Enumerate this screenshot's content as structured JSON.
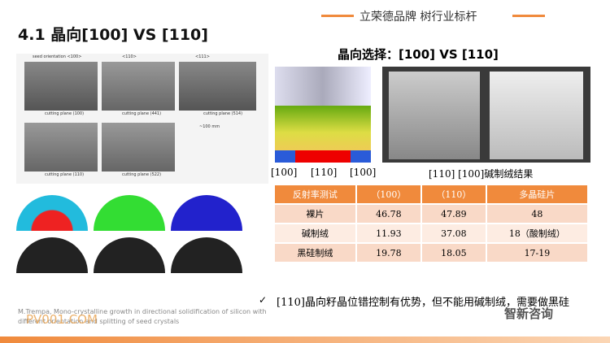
{
  "header": {
    "slogan": "立荣德品牌  树行业标杆",
    "title": "4.1 晶向[100] VS [110]"
  },
  "figure_left": {
    "captions": [
      "seed orientation <100>",
      "<110>",
      "<111>",
      "cutting plane (100)",
      "cutting plane (441)",
      "cutting plane (514)",
      "cutting plane (110)",
      "cutting plane (522)",
      "~100 mm"
    ]
  },
  "right": {
    "heading": "晶向选择：[100] VS [110]",
    "labels": [
      "[100]",
      "[110]",
      "[100]"
    ],
    "result_caption": "[110] [100]碱制绒结果"
  },
  "table": {
    "header": [
      "反射率测试",
      "（100）",
      "（110）",
      "多晶硅片"
    ],
    "rows": [
      [
        "裸片",
        "46.78",
        "47.89",
        "48"
      ],
      [
        "碱制绒",
        "11.93",
        "37.08",
        "18（酸制绒）"
      ],
      [
        "黑硅制绒",
        "19.78",
        "18.05",
        "17-19"
      ]
    ]
  },
  "bullet": "[110]晶向籽晶位错控制有优势，但不能用碱制绒，需要做黑硅",
  "citation": "M.Trempa, Mono-crystalline growth in directional solidification of silicon with different orientation and splitting of seed crystals",
  "watermark": "PV001.COM",
  "logo": "智新咨询"
}
